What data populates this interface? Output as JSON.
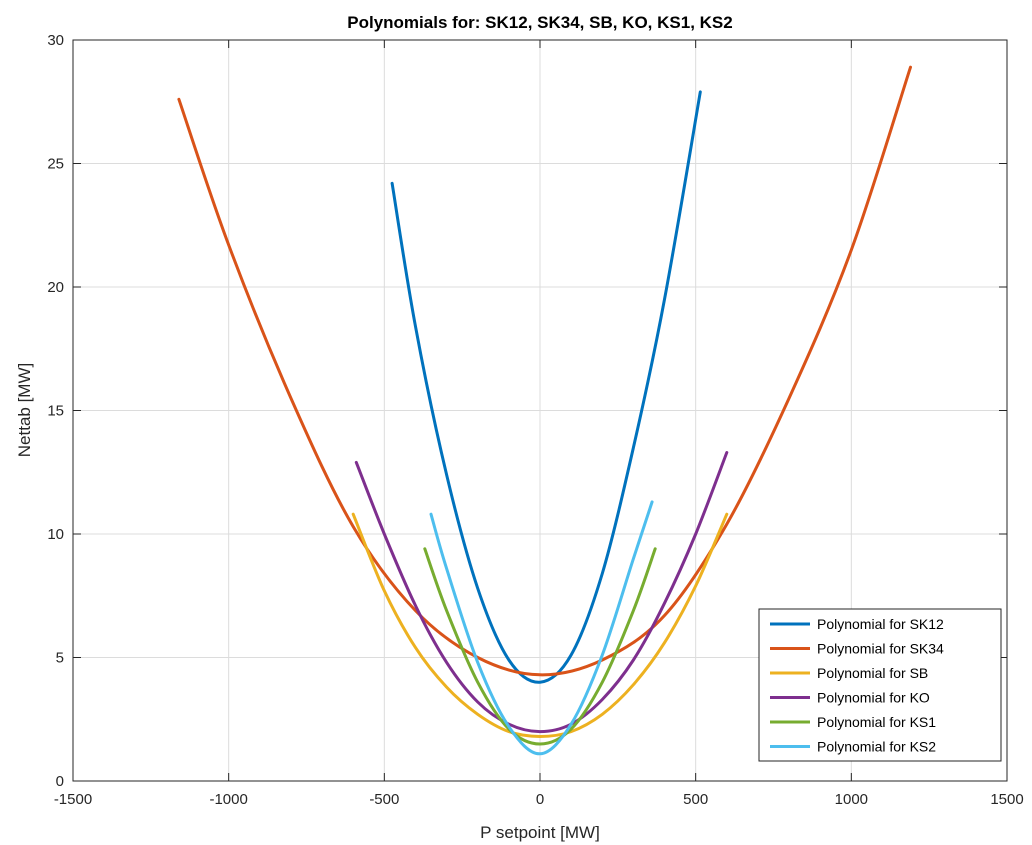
{
  "chart_data": {
    "type": "line",
    "title": "Polynomials for: SK12, SK34, SB, KO, KS1, KS2",
    "xlabel": "P setpoint [MW]",
    "ylabel": "Nettab [MW]",
    "xlim": [
      -1500,
      1500
    ],
    "ylim": [
      0,
      30
    ],
    "xticks": [
      -1500,
      -1000,
      -500,
      0,
      500,
      1000,
      1500
    ],
    "xtick_labels": [
      "-1500",
      "-1000",
      "-500",
      "0",
      "500",
      "1000",
      "1500"
    ],
    "yticks": [
      0,
      5,
      10,
      15,
      20,
      25,
      30
    ],
    "ytick_labels": [
      "0",
      "5",
      "10",
      "15",
      "20",
      "25",
      "30"
    ],
    "grid": true,
    "legend_position": "bottom-right",
    "series": [
      {
        "name": "Polynomial for SK12",
        "color": "#0072BD",
        "x": [
          -475,
          -400,
          -300,
          -200,
          -100,
          0,
          100,
          200,
          300,
          400,
          515
        ],
        "y": [
          24.2,
          18.4,
          12.4,
          7.8,
          4.9,
          4.0,
          5.1,
          8.4,
          13.5,
          19.5,
          27.9
        ]
      },
      {
        "name": "Polynomial for SK34",
        "color": "#D95319",
        "x": [
          -1160,
          -1000,
          -800,
          -600,
          -400,
          -200,
          0,
          200,
          400,
          600,
          800,
          1000,
          1190
        ],
        "y": [
          27.6,
          21.7,
          15.5,
          10.3,
          6.9,
          5.0,
          4.3,
          4.9,
          6.7,
          10.4,
          15.5,
          21.5,
          28.9
        ]
      },
      {
        "name": "Polynomial for SB",
        "color": "#EDB120",
        "x": [
          -600,
          -500,
          -400,
          -300,
          -200,
          -100,
          0,
          100,
          200,
          300,
          400,
          500,
          600
        ],
        "y": [
          10.8,
          7.7,
          5.4,
          3.8,
          2.7,
          2.0,
          1.8,
          2.0,
          2.7,
          3.9,
          5.6,
          7.9,
          10.8
        ]
      },
      {
        "name": "Polynomial for KO",
        "color": "#7E2F8E",
        "x": [
          -590,
          -500,
          -400,
          -300,
          -200,
          -100,
          0,
          100,
          200,
          300,
          400,
          500,
          600
        ],
        "y": [
          12.9,
          10.0,
          7.1,
          4.8,
          3.2,
          2.3,
          2.0,
          2.3,
          3.3,
          4.9,
          7.2,
          10.0,
          13.3
        ]
      },
      {
        "name": "Polynomial for KS1",
        "color": "#77AC30",
        "x": [
          -370,
          -300,
          -200,
          -100,
          0,
          100,
          200,
          300,
          370
        ],
        "y": [
          9.4,
          6.9,
          4.0,
          2.1,
          1.5,
          2.1,
          4.0,
          6.9,
          9.4
        ]
      },
      {
        "name": "Polynomial for KS2",
        "color": "#4DBEEE",
        "x": [
          -350,
          -300,
          -200,
          -100,
          0,
          100,
          200,
          300,
          360
        ],
        "y": [
          10.8,
          8.6,
          4.8,
          2.2,
          1.1,
          2.3,
          5.1,
          9.0,
          11.3
        ]
      }
    ]
  }
}
